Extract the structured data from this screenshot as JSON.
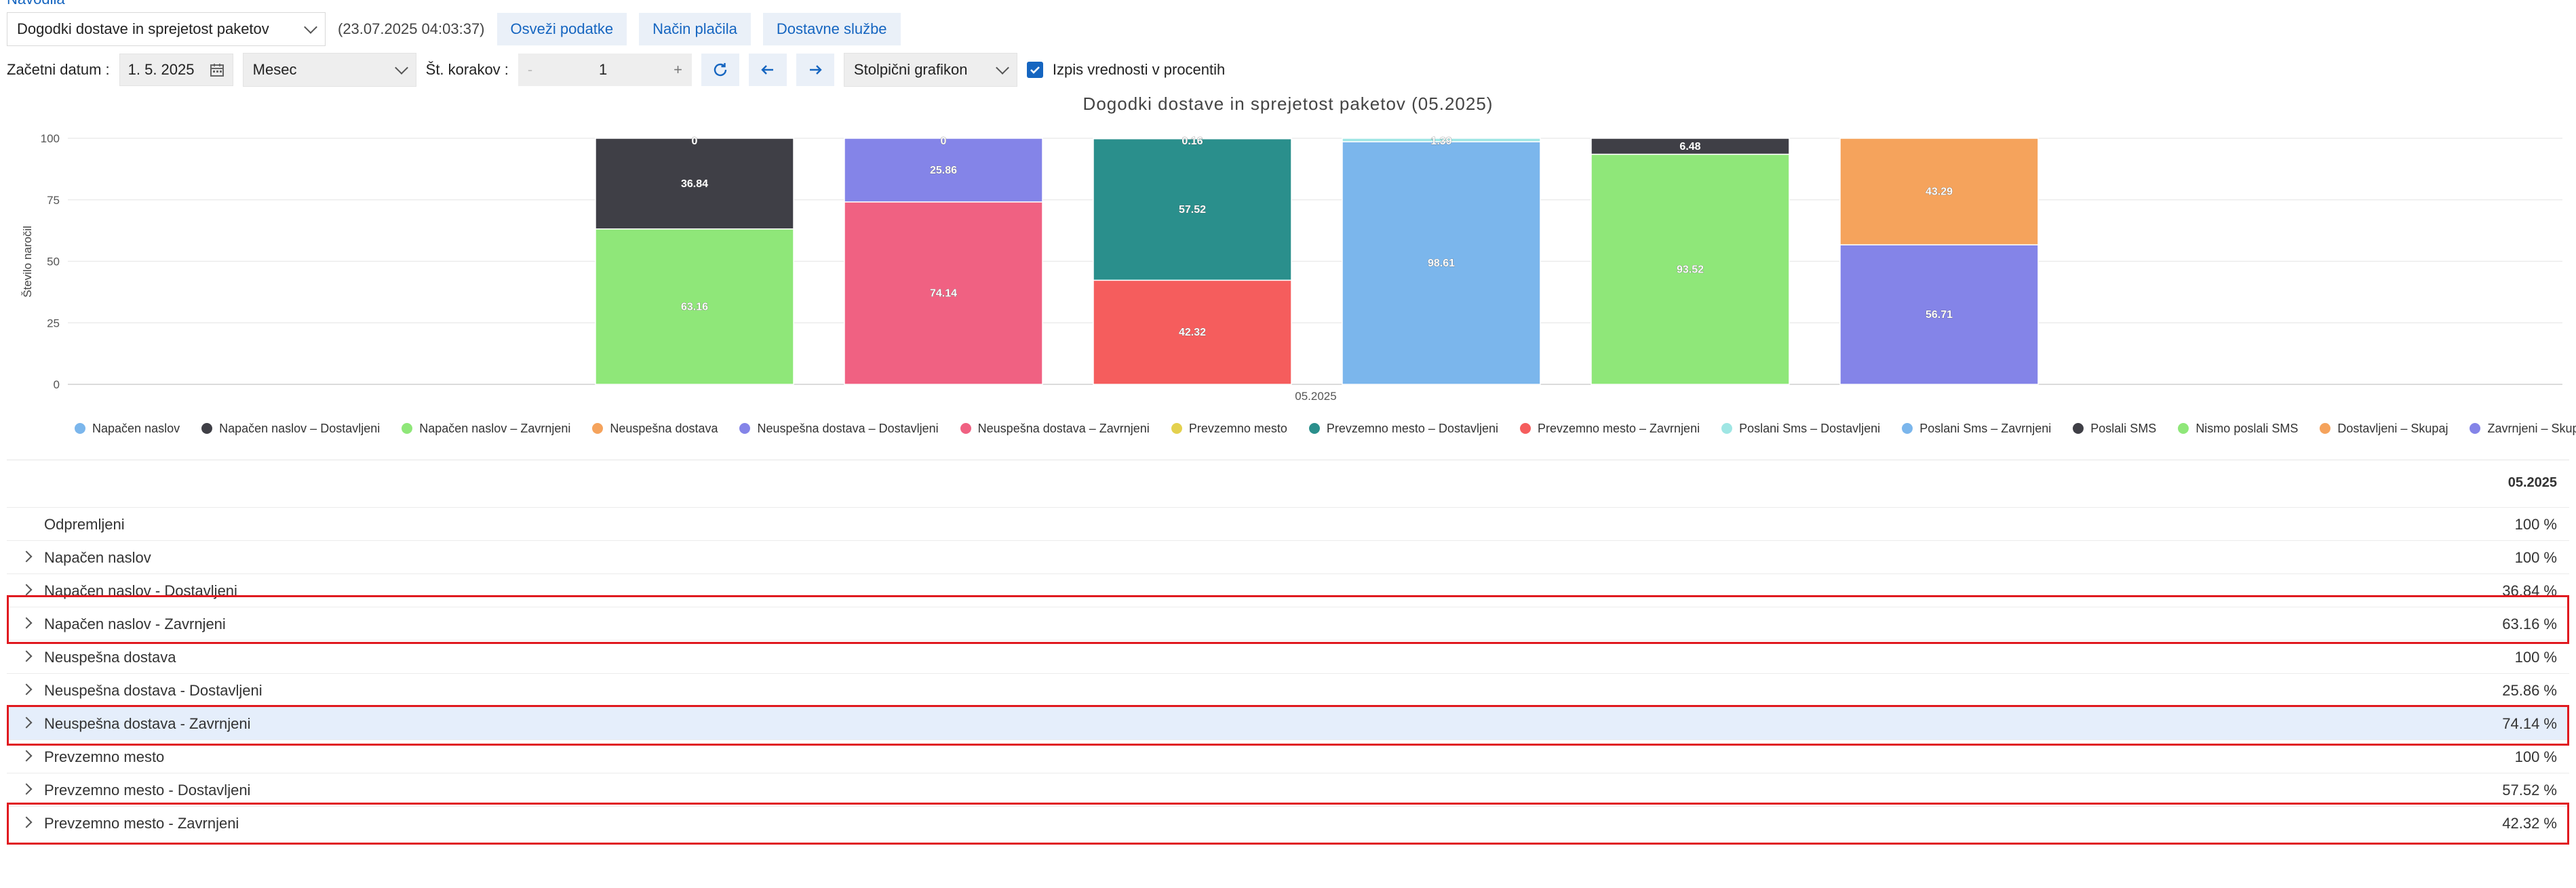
{
  "top_link": "Navodila",
  "toolbar": {
    "report_select": "Dogodki dostave in sprejetost paketov",
    "timestamp": "(23.07.2025 04:03:37)",
    "refresh_btn": "Osveži podatke",
    "payment_btn": "Način plačila",
    "delivery_btn": "Dostavne službe",
    "start_date_label": "Začetni datum :",
    "start_date": "1. 5. 2025",
    "period_select": "Mesec",
    "steps_label": "Št. korakov :",
    "steps_minus": "-",
    "steps_value": "1",
    "steps_plus": "+",
    "chart_type_select": "Stolpični grafikon",
    "percent_checkbox_label": "Izpis vrednosti v procentih",
    "percent_checked": true
  },
  "chart_data": {
    "type": "bar",
    "title": "Dogodki dostave in sprejetost paketov (05.2025)",
    "ylabel": "Število naročil",
    "xlabel": "",
    "ylim": [
      0,
      100
    ],
    "yticks": [
      "0",
      "25",
      "50",
      "75",
      "100"
    ],
    "x_tick": "05.2025",
    "stacks": [
      {
        "segments": [
          {
            "series": "Napačen naslov – Zavrnjeni",
            "value": 63.16,
            "label": "63.16",
            "color": "#8fe779"
          },
          {
            "series": "Napačen naslov – Dostavljeni",
            "value": 36.84,
            "label": "36.84",
            "color": "#3f3f46"
          },
          {
            "series": "Napačen naslov",
            "value": 0,
            "label": "0",
            "color": "#3f3f46"
          }
        ]
      },
      {
        "segments": [
          {
            "series": "Neuspešna dostava – Zavrnjeni",
            "value": 74.14,
            "label": "74.14",
            "color": "#f06182"
          },
          {
            "series": "Neuspešna dostava – Dostavljeni",
            "value": 25.86,
            "label": "25.86",
            "color": "#8484e8"
          },
          {
            "series": "Neuspešna dostava",
            "value": 0,
            "label": "0",
            "color": "#8484e8"
          }
        ]
      },
      {
        "segments": [
          {
            "series": "Prevzemno mesto – Zavrnjeni",
            "value": 42.32,
            "label": "42.32",
            "color": "#f55d5d"
          },
          {
            "series": "Prevzemno mesto – Dostavljeni",
            "value": 57.52,
            "label": "57.52",
            "color": "#2a8f8c"
          },
          {
            "series": "Prevzemno mesto",
            "value": 0.16,
            "label": "0.16",
            "color": "#2a8f8c"
          }
        ]
      },
      {
        "segments": [
          {
            "series": "Poslani Sms – Zavrnjeni",
            "value": 98.61,
            "label": "98.61",
            "color": "#7bb6ec"
          },
          {
            "series": "Poslani Sms – Dostavljeni",
            "value": 1.39,
            "label": "1.39",
            "color": "#9fe6e4"
          }
        ]
      },
      {
        "segments": [
          {
            "series": "Nismo poslali SMS",
            "value": 93.52,
            "label": "93.52",
            "color": "#8fe779"
          },
          {
            "series": "Poslali SMS",
            "value": 6.48,
            "label": "6.48",
            "color": "#3f3f46"
          }
        ]
      },
      {
        "segments": [
          {
            "series": "Zavrnjeni – Skupaj",
            "value": 56.71,
            "label": "56.71",
            "color": "#8484e8"
          },
          {
            "series": "Dostavljeni – Skupaj",
            "value": 43.29,
            "label": "43.29",
            "color": "#f5a35c"
          }
        ]
      }
    ],
    "legend": [
      {
        "name": "Napačen naslov",
        "color": "#7bb6ec"
      },
      {
        "name": "Napačen naslov – Dostavljeni",
        "color": "#3f3f46"
      },
      {
        "name": "Napačen naslov – Zavrnjeni",
        "color": "#8fe779"
      },
      {
        "name": "Neuspešna dostava",
        "color": "#f5a35c"
      },
      {
        "name": "Neuspešna dostava – Dostavljeni",
        "color": "#8484e8"
      },
      {
        "name": "Neuspešna dostava – Zavrnjeni",
        "color": "#f06182"
      },
      {
        "name": "Prevzemno mesto",
        "color": "#e4d14e"
      },
      {
        "name": "Prevzemno mesto – Dostavljeni",
        "color": "#2a8f8c"
      },
      {
        "name": "Prevzemno mesto – Zavrnjeni",
        "color": "#f55d5d"
      },
      {
        "name": "Poslani Sms – Dostavljeni",
        "color": "#9fe6e4"
      },
      {
        "name": "Poslani Sms – Zavrnjeni",
        "color": "#7bb6ec"
      },
      {
        "name": "Poslali SMS",
        "color": "#3f3f46"
      },
      {
        "name": "Nismo poslali SMS",
        "color": "#8fe779"
      },
      {
        "name": "Dostavljeni – Skupaj",
        "color": "#f5a35c"
      },
      {
        "name": "Zavrnjeni – Skupaj",
        "color": "#8484e8"
      }
    ]
  },
  "table": {
    "column": "05.2025",
    "rows": [
      {
        "label": "Odpremljeni",
        "value": "100 %",
        "expandable": false
      },
      {
        "label": "Napačen naslov",
        "value": "100 %",
        "expandable": true
      },
      {
        "label": "Napačen naslov - Dostavljeni",
        "value": "36.84 %",
        "expandable": true
      },
      {
        "label": "Napačen naslov - Zavrnjeni",
        "value": "63.16 %",
        "expandable": true
      },
      {
        "label": "Neuspešna dostava",
        "value": "100 %",
        "expandable": true
      },
      {
        "label": "Neuspešna dostava - Dostavljeni",
        "value": "25.86 %",
        "expandable": true
      },
      {
        "label": "Neuspešna dostava - Zavrnjeni",
        "value": "74.14 %",
        "expandable": true
      },
      {
        "label": "Prevzemno mesto",
        "value": "100 %",
        "expandable": true
      },
      {
        "label": "Prevzemno mesto - Dostavljeni",
        "value": "57.52 %",
        "expandable": true
      },
      {
        "label": "Prevzemno mesto - Zavrnjeni",
        "value": "42.32 %",
        "expandable": true
      }
    ]
  }
}
